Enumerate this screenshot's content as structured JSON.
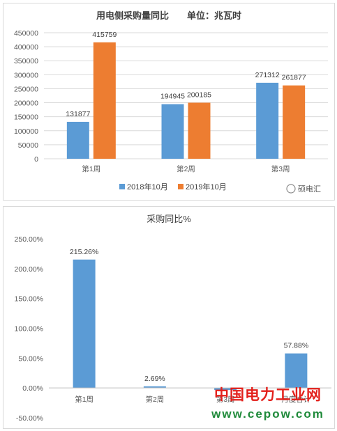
{
  "chart_data": [
    {
      "type": "bar",
      "title": "用电侧采购量同比　　单位：兆瓦时",
      "categories": [
        "第1周",
        "第2周",
        "第3周"
      ],
      "series": [
        {
          "name": "2018年10月",
          "color": "#5b9bd5",
          "values": [
            131877,
            194945,
            271312
          ]
        },
        {
          "name": "2019年10月",
          "color": "#ed7d31",
          "values": [
            415759,
            200185,
            261877
          ]
        }
      ],
      "ylim": [
        0,
        450000
      ],
      "yticks": [
        "0",
        "50000",
        "100000",
        "150000",
        "200000",
        "250000",
        "300000",
        "350000",
        "400000",
        "450000"
      ],
      "grid": true,
      "legend": "bottom"
    },
    {
      "type": "bar",
      "title": "采购同比%",
      "categories": [
        "第1周",
        "第2周",
        "第3周",
        "月度合计"
      ],
      "series": [
        {
          "color": "#5b9bd5",
          "values": [
            215.26,
            2.69,
            -3.48,
            57.88
          ]
        }
      ],
      "data_labels": [
        "215.26%",
        "2.69%",
        "",
        "57.88%"
      ],
      "ylim": [
        -50,
        250
      ],
      "yticks": [
        "-50.00%",
        "0.00%",
        "50.00%",
        "100.00%",
        "150.00%",
        "200.00%",
        "250.00%"
      ],
      "grid": false
    }
  ],
  "watermark": {
    "brand": "硕电汇",
    "site_name": "中国电力工业网",
    "site_url": "www.cepow.com"
  }
}
